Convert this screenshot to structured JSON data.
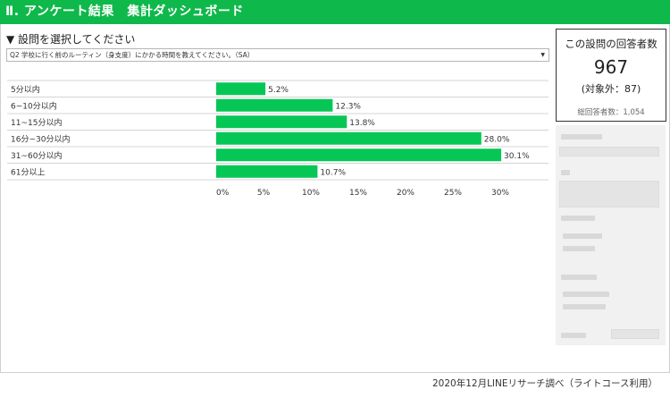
{
  "header": {
    "title": "Ⅱ. アンケート結果　集計ダッシュボード"
  },
  "question": {
    "label": "▼ 設問を選択してください",
    "selected": "Q2 学校に行く前のルーティン（身支度）にかかる時間を教えてください。（SA）"
  },
  "summary": {
    "title": "この設問の回答者数",
    "count": "967",
    "excluded": "(対象外：87)",
    "total": "総回答者数：1,054"
  },
  "chart_data": {
    "type": "bar",
    "orientation": "horizontal",
    "categories": [
      "5分以内",
      "6~10分以内",
      "11~15分以内",
      "16分~30分以内",
      "31~60分以内",
      "61分以上"
    ],
    "values": [
      5.2,
      12.3,
      13.8,
      28.0,
      30.1,
      10.7
    ],
    "value_labels": [
      "5.2%",
      "12.3%",
      "13.8%",
      "28.0%",
      "30.1%",
      "10.7%"
    ],
    "xticks": [
      "0%",
      "5%",
      "10%",
      "15%",
      "20%",
      "25%",
      "30%"
    ],
    "xlim": [
      0,
      30
    ],
    "color": "#06c755"
  },
  "footer": {
    "source": "2020年12月LINEリサーチ調べ（ライトコース利用）"
  }
}
